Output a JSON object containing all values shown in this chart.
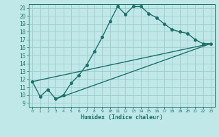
{
  "xlabel": "Humidex (Indice chaleur)",
  "bg_color": "#c0e8e8",
  "grid_color": "#a0cccc",
  "line_color": "#1a7068",
  "xlim": [
    -0.5,
    23.5
  ],
  "ylim": [
    8.5,
    21.5
  ],
  "xticks": [
    0,
    1,
    2,
    3,
    4,
    5,
    6,
    7,
    8,
    9,
    10,
    11,
    12,
    13,
    14,
    15,
    16,
    17,
    18,
    19,
    20,
    21,
    22,
    23
  ],
  "yticks": [
    9,
    10,
    11,
    12,
    13,
    14,
    15,
    16,
    17,
    18,
    19,
    20,
    21
  ],
  "line1_x": [
    0,
    1,
    2,
    3,
    4,
    5,
    6,
    7,
    8,
    9,
    10,
    11,
    12,
    13,
    14,
    15,
    16,
    17,
    18,
    19,
    20,
    21,
    22,
    23
  ],
  "line1_y": [
    11.7,
    9.8,
    10.7,
    9.5,
    10.0,
    11.5,
    12.5,
    13.8,
    15.5,
    17.3,
    19.3,
    21.2,
    20.2,
    21.2,
    21.2,
    20.3,
    19.8,
    19.0,
    18.3,
    18.0,
    17.8,
    17.0,
    16.5,
    16.5
  ],
  "line2_x": [
    0,
    23
  ],
  "line2_y": [
    11.7,
    16.5
  ],
  "line3_x": [
    3,
    23
  ],
  "line3_y": [
    9.5,
    16.5
  ]
}
